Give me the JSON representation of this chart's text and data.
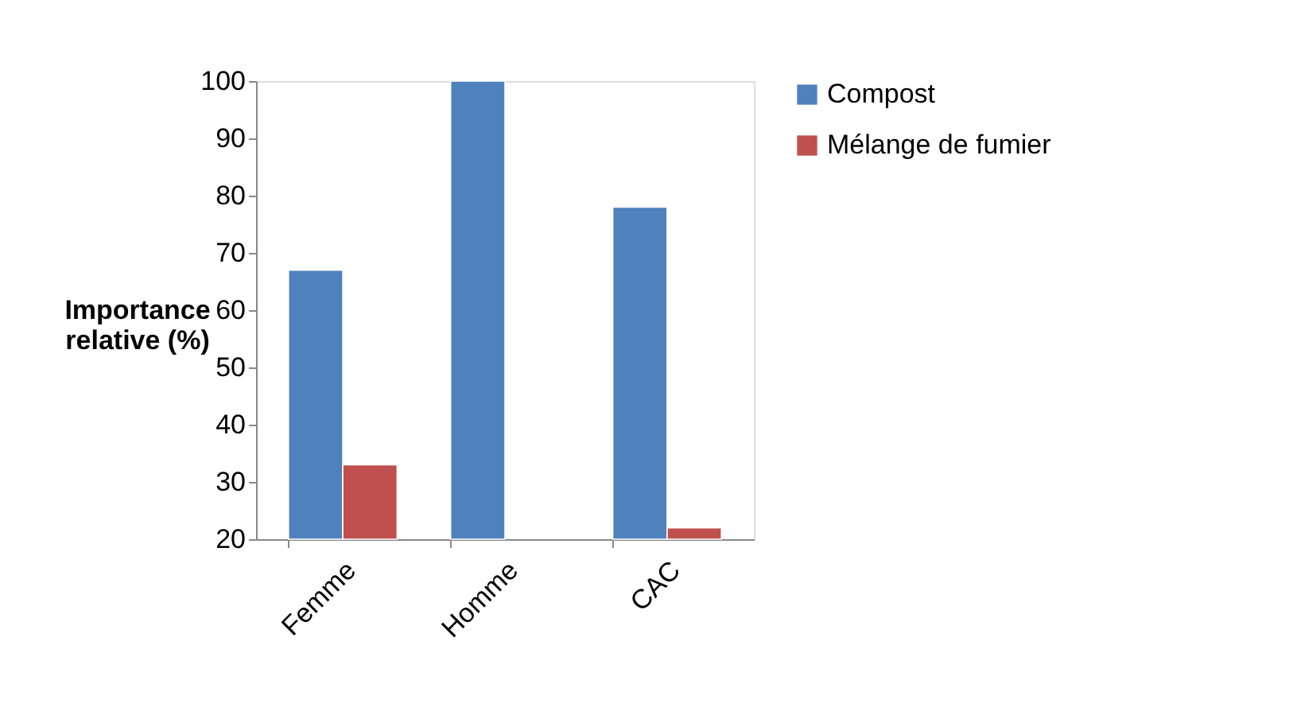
{
  "chart_data": {
    "type": "bar",
    "ylabel": "Importance relative (%)",
    "categories": [
      "Femme",
      "Homme",
      "CAC"
    ],
    "series": [
      {
        "name": "Compost",
        "color": "#4f81bd",
        "values": [
          67,
          100,
          78
        ]
      },
      {
        "name": "Mélange de fumier",
        "color": "#c0504d",
        "values": [
          33,
          null,
          22
        ]
      }
    ],
    "ylim": [
      20,
      100
    ],
    "yticks": [
      20,
      30,
      40,
      50,
      60,
      70,
      80,
      90,
      100
    ],
    "grid": false,
    "legend": "right"
  }
}
